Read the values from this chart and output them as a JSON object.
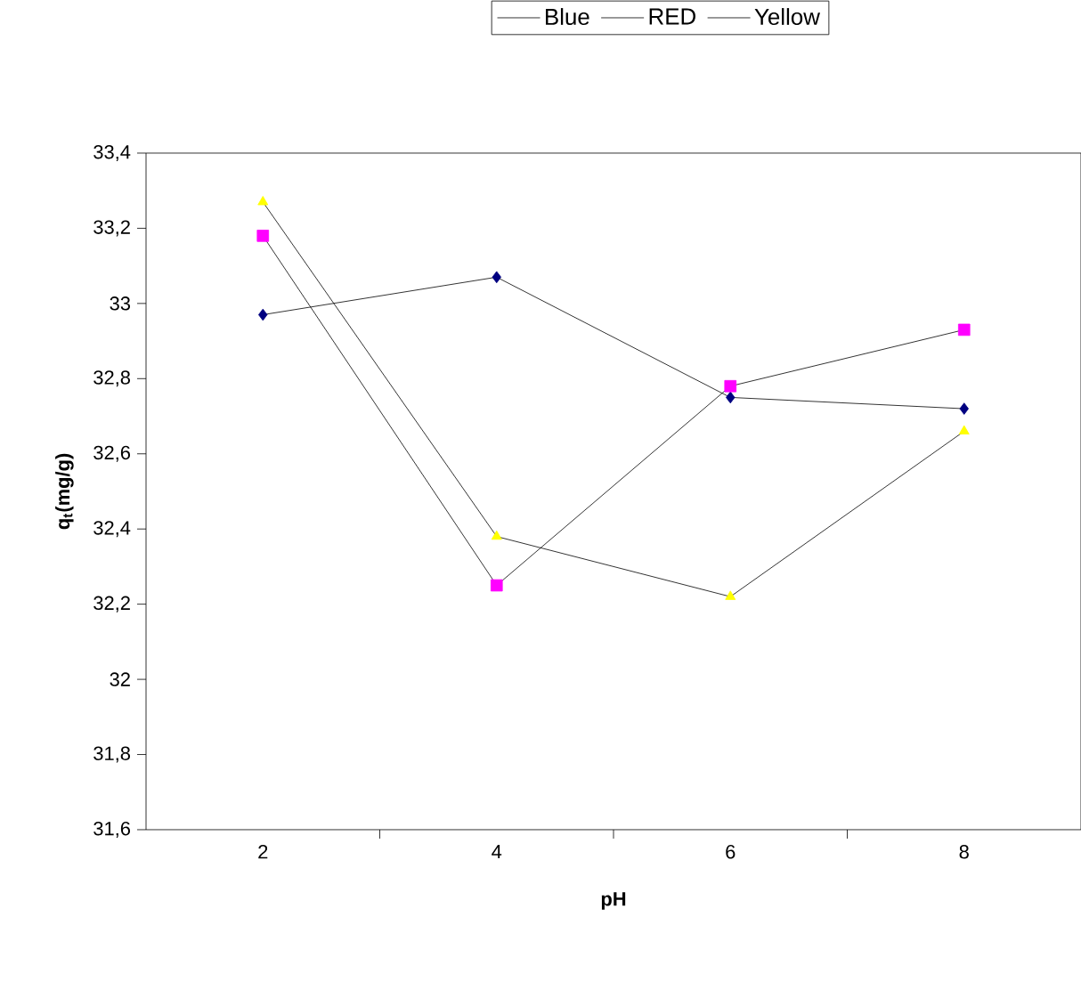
{
  "chart_data": {
    "type": "line",
    "xlabel": "pH",
    "ylabel": "q$_{t}$(mg/g)",
    "categories": [
      "2",
      "4",
      "6",
      "8"
    ],
    "series": [
      {
        "name": "Blue",
        "color": "#000080",
        "marker": "diamond",
        "values": [
          32.97,
          33.07,
          32.75,
          32.72
        ]
      },
      {
        "name": "RED",
        "color": "#ff00ff",
        "marker": "square",
        "values": [
          33.18,
          32.25,
          32.78,
          32.93
        ]
      },
      {
        "name": "Yellow",
        "color": "#ffff00",
        "marker": "triangle",
        "values": [
          33.27,
          32.38,
          32.22,
          32.66
        ]
      }
    ],
    "ylim": [
      31.6,
      33.4
    ],
    "yticks": [
      {
        "value": 31.6,
        "label": "31,6"
      },
      {
        "value": 31.8,
        "label": "31,8"
      },
      32,
      {
        "value": 32.2,
        "label": "32,2"
      },
      {
        "value": 32.4,
        "label": "32,4"
      },
      {
        "value": 32.6,
        "label": "32,6"
      },
      {
        "value": 32.8,
        "label": "32,8"
      },
      33,
      {
        "value": 33.2,
        "label": "33,2"
      },
      {
        "value": 33.4,
        "label": "33,4"
      }
    ],
    "grid": false,
    "legend": "top"
  }
}
